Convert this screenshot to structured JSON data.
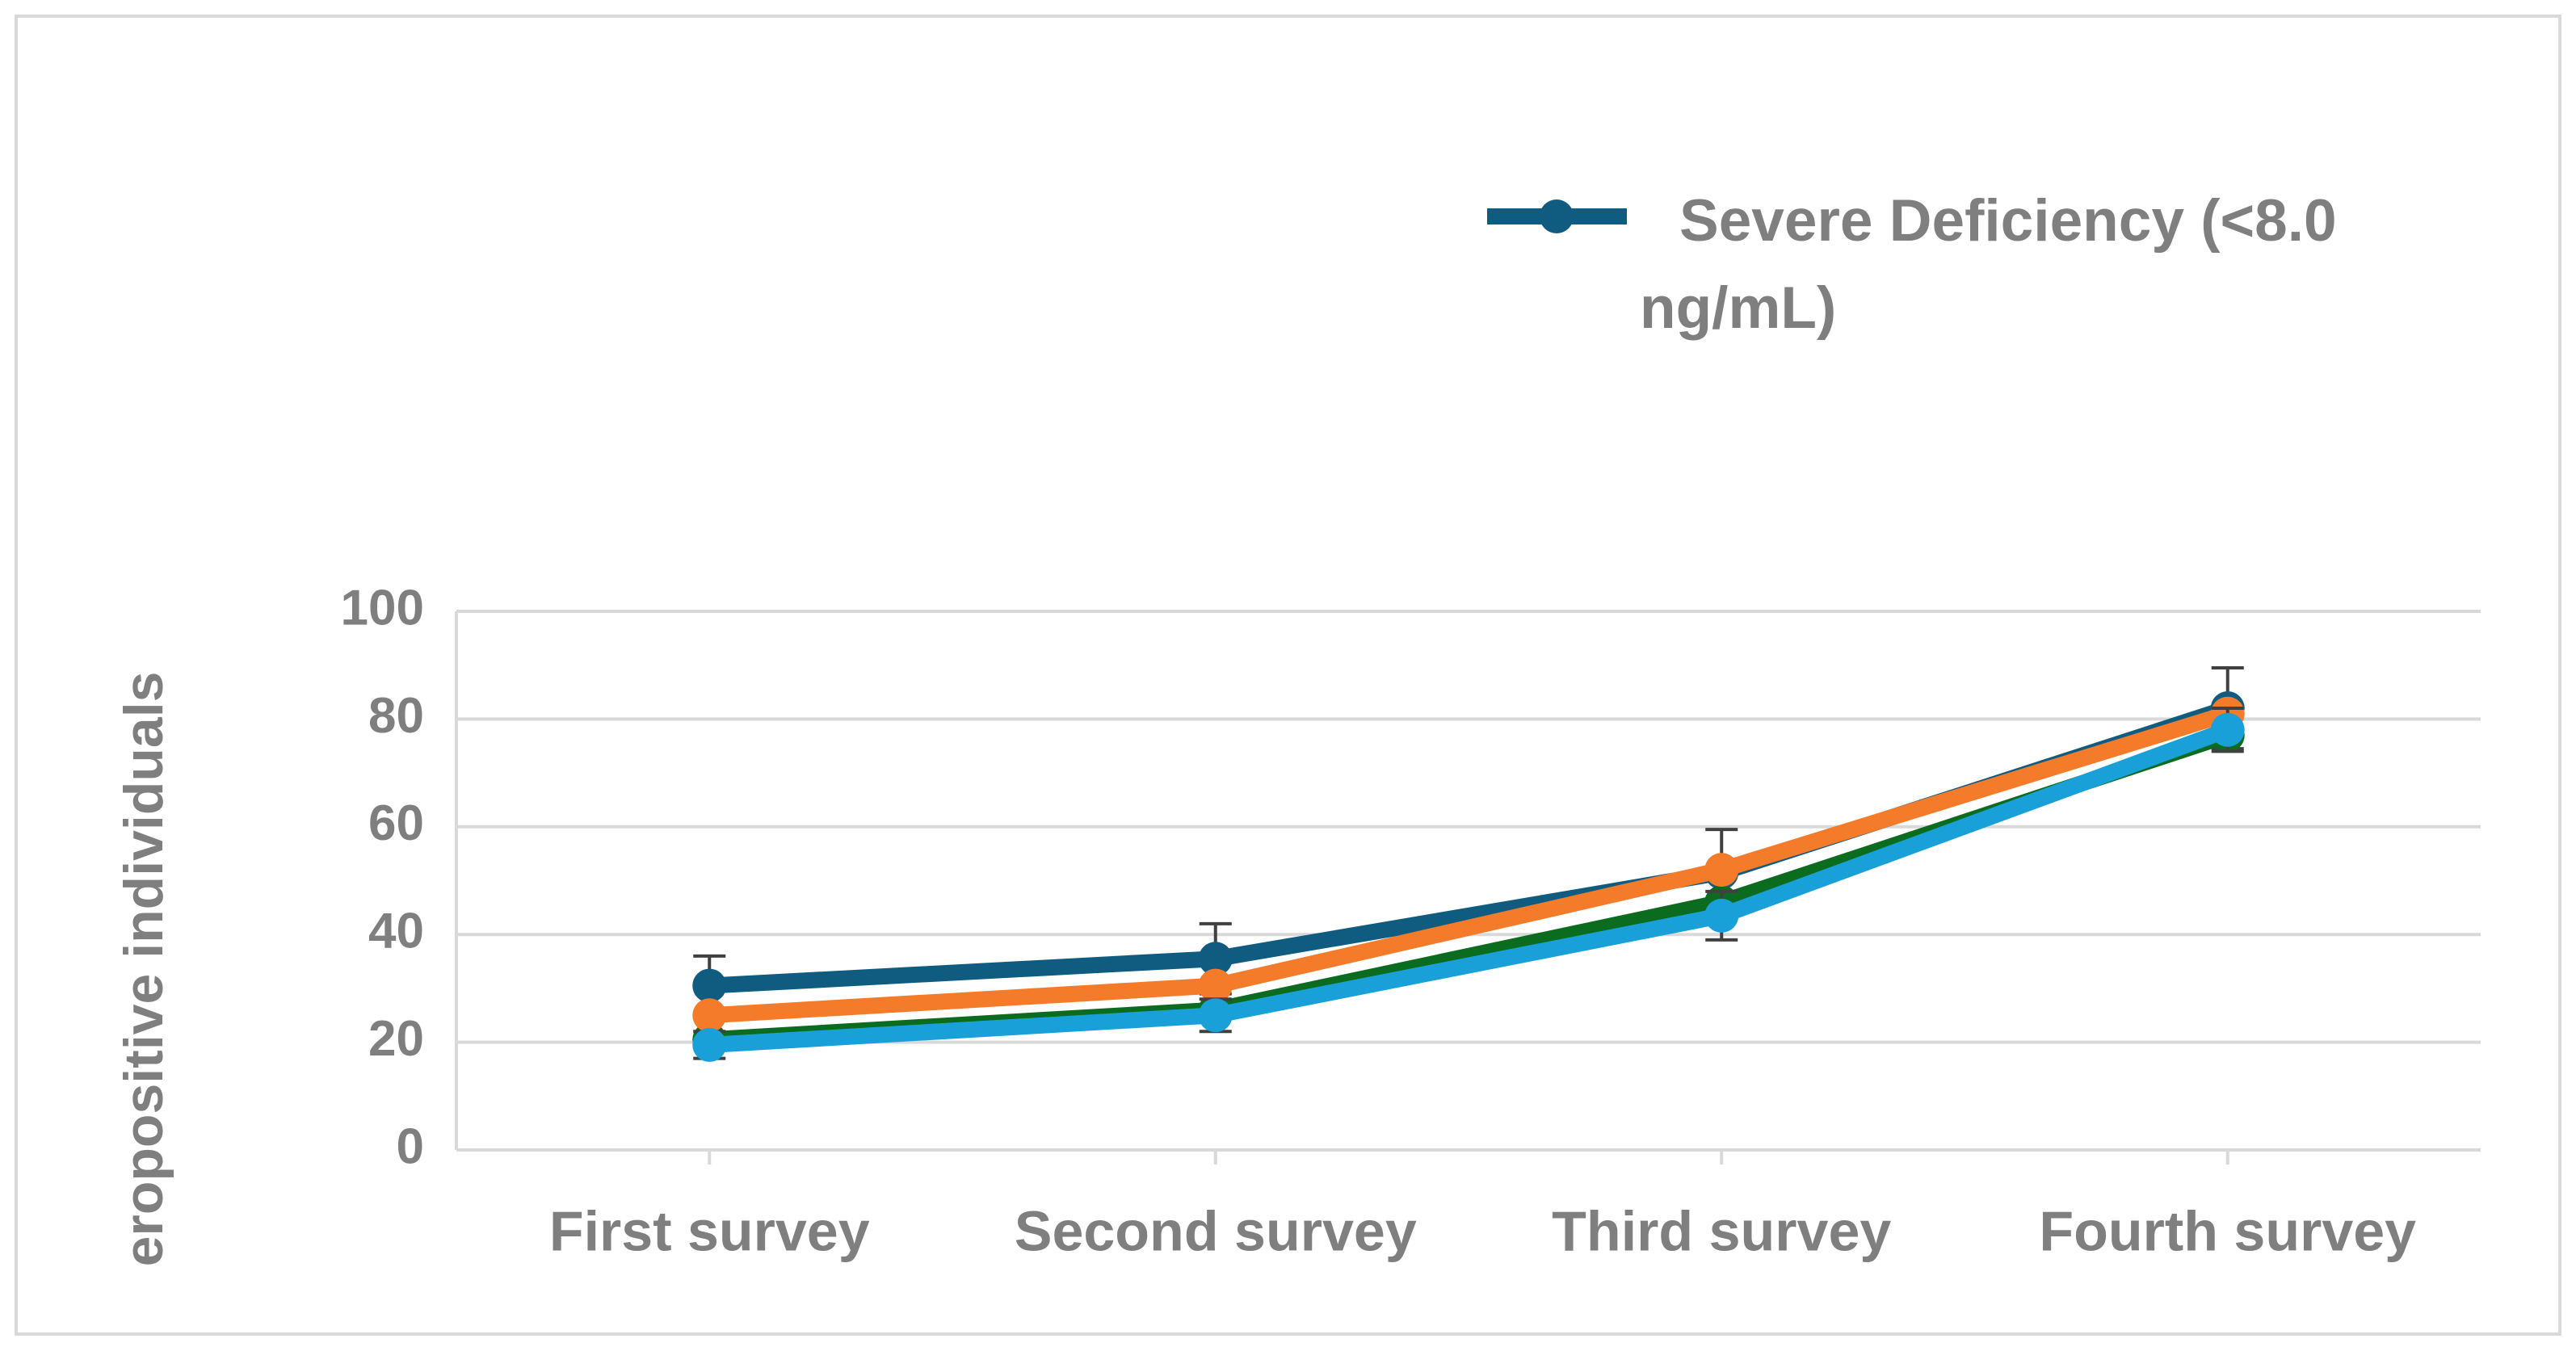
{
  "chart_data": {
    "type": "line",
    "y_label": "eropositive individuals",
    "categories": [
      "First survey",
      "Second survey",
      "Third survey",
      "Fourth survey"
    ],
    "series": [
      {
        "name": "Severe Deficiency (<8.0 ng/mL)",
        "color": "#0f5c80",
        "values": [
          30.5,
          35.5,
          51.5,
          82
        ],
        "errors": [
          5.5,
          6.5,
          8,
          7.5
        ]
      },
      {
        "color": "#0b6b1e",
        "values": [
          20.5,
          26,
          46,
          77
        ]
      },
      {
        "color": "#f47b2a",
        "values": [
          25,
          30.5,
          52,
          81
        ]
      },
      {
        "color": "#1aa0d8",
        "values": [
          19.5,
          25,
          43.5,
          78
        ],
        "errors": [
          2.5,
          3,
          4.5,
          4
        ]
      }
    ],
    "ylim": [
      0,
      100
    ],
    "yticks": [
      0,
      20,
      40,
      60,
      80,
      100
    ],
    "grid": true
  }
}
